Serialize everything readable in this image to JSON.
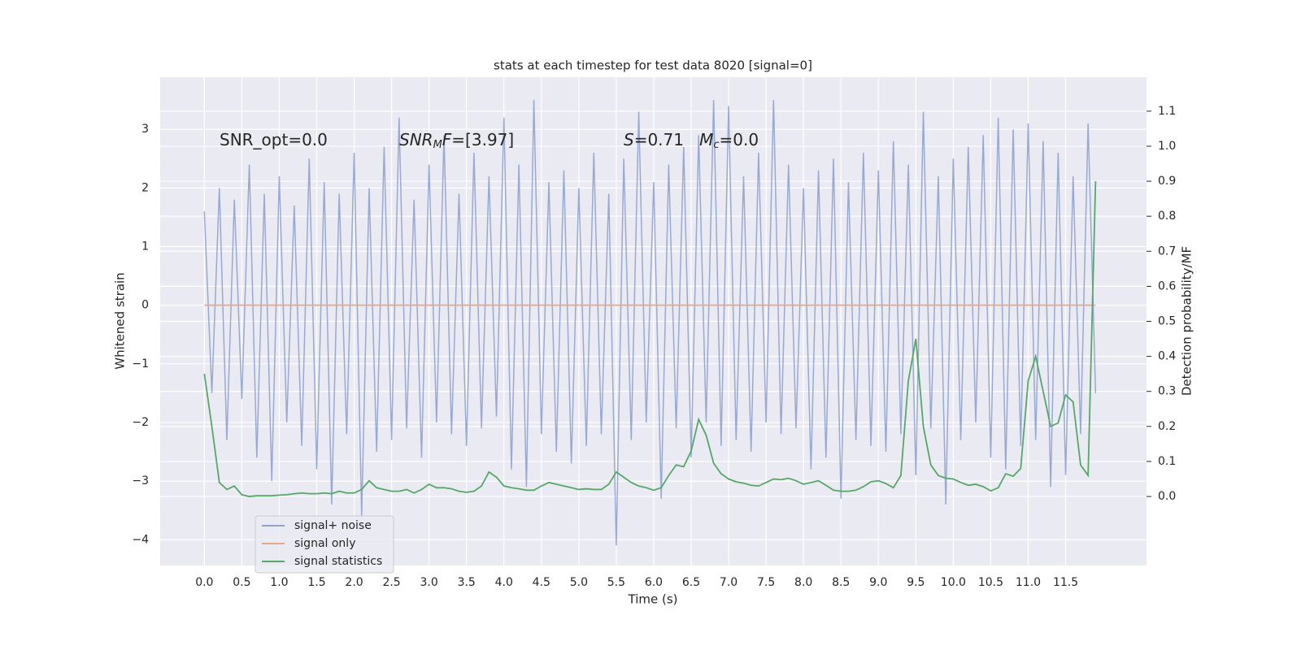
{
  "chart_data": {
    "type": "line",
    "title": "stats at each timestep for test data 8020 [signal=0]",
    "xlabel": "Time (s)",
    "ylabel": "Whitened strain",
    "y2label": "Detection probability/MF",
    "grid": true,
    "legend": "lower left",
    "xlim": [
      -0.59,
      12.58
    ],
    "ylim": [
      -4.44,
      3.89
    ],
    "y2lim": [
      -0.197,
      1.197
    ],
    "xticks": [
      {
        "value": 0,
        "label": "0.0"
      },
      0.5,
      {
        "value": 1,
        "label": "1.0"
      },
      1.5,
      {
        "value": 2,
        "label": "2.0"
      },
      2.5,
      {
        "value": 3,
        "label": "3.0"
      },
      3.5,
      {
        "value": 4,
        "label": "4.0"
      },
      4.5,
      {
        "value": 5,
        "label": "5.0"
      },
      5.5,
      {
        "value": 6,
        "label": "6.0"
      },
      6.5,
      {
        "value": 7,
        "label": "7.0"
      },
      7.5,
      {
        "value": 8,
        "label": "8.0"
      },
      8.5,
      {
        "value": 9,
        "label": "9.0"
      },
      9.5,
      {
        "value": 10,
        "label": "10.0"
      },
      10.5,
      {
        "value": 11,
        "label": "11.0"
      },
      11.5
    ],
    "yticks": [
      {
        "value": -4,
        "label": "−4"
      },
      {
        "value": -3,
        "label": "−3"
      },
      {
        "value": -2,
        "label": "−2"
      },
      {
        "value": -1,
        "label": "−1"
      },
      0,
      1,
      2,
      3
    ],
    "y2ticks": [
      {
        "value": 0,
        "label": "0.0"
      },
      0.1,
      0.2,
      0.3,
      0.4,
      0.5,
      0.6,
      0.7,
      0.8,
      0.9,
      {
        "value": 1,
        "label": "1.0"
      },
      1.1
    ],
    "annotations": [
      {
        "parts": [
          {
            "text": "SNR_opt=0.0"
          }
        ]
      },
      {
        "parts": [
          {
            "text": "SNR",
            "italic": true
          },
          {
            "text": "M",
            "italic": true,
            "sub": true
          },
          {
            "text": "F",
            "italic": true
          },
          {
            "text": "=[3.97]"
          }
        ]
      },
      {
        "parts": [
          {
            "text": "S",
            "italic": true
          },
          {
            "text": "=0.71   "
          },
          {
            "text": "M",
            "italic": true
          },
          {
            "text": "c",
            "italic": true,
            "sub": true
          },
          {
            "text": "=0.0"
          }
        ]
      }
    ],
    "x": [
      0,
      0.1,
      0.2,
      0.3,
      0.4,
      0.5,
      0.6,
      0.7,
      0.8,
      0.9,
      1,
      1.1,
      1.2,
      1.3,
      1.4,
      1.5,
      1.6,
      1.7,
      1.8,
      1.9,
      2,
      2.1,
      2.2,
      2.3,
      2.4,
      2.5,
      2.6,
      2.7,
      2.8,
      2.9,
      3,
      3.1,
      3.2,
      3.3,
      3.4,
      3.5,
      3.6,
      3.7,
      3.8,
      3.9,
      4,
      4.1,
      4.2,
      4.3,
      4.4,
      4.5,
      4.6,
      4.7,
      4.8,
      4.9,
      5,
      5.1,
      5.2,
      5.3,
      5.4,
      5.5,
      5.6,
      5.7,
      5.8,
      5.9,
      6,
      6.1,
      6.2,
      6.3,
      6.4,
      6.5,
      6.6,
      6.7,
      6.8,
      6.9,
      7,
      7.1,
      7.2,
      7.3,
      7.4,
      7.5,
      7.6,
      7.7,
      7.8,
      7.9,
      8,
      8.1,
      8.2,
      8.3,
      8.4,
      8.5,
      8.6,
      8.7,
      8.8,
      8.9,
      9,
      9.1,
      9.2,
      9.3,
      9.4,
      9.5,
      9.6,
      9.7,
      9.8,
      9.9,
      10,
      10.1,
      10.2,
      10.3,
      10.4,
      10.5,
      10.6,
      10.7,
      10.8,
      10.9,
      11,
      11.1,
      11.2,
      11.3,
      11.4,
      11.5,
      11.6,
      11.7,
      11.8,
      11.9
    ],
    "series": [
      {
        "name": "signal+ noise",
        "color": "#8fa3cf",
        "values": [
          1.6,
          -1.5,
          2.0,
          -2.3,
          1.8,
          -1.6,
          2.4,
          -2.6,
          1.9,
          -3.0,
          2.2,
          -2.0,
          1.7,
          -2.4,
          2.5,
          -2.8,
          2.1,
          -3.4,
          1.9,
          -2.2,
          2.6,
          -3.6,
          2.0,
          -2.5,
          2.7,
          -2.3,
          3.2,
          -2.1,
          1.8,
          -2.6,
          2.4,
          -2.0,
          2.9,
          -2.2,
          1.9,
          -2.4,
          2.6,
          -2.1,
          2.2,
          -1.9,
          3.2,
          -2.8,
          2.4,
          -3.1,
          3.5,
          -2.2,
          2.1,
          -2.5,
          2.3,
          -2.7,
          2.0,
          -2.4,
          2.6,
          -2.2,
          1.9,
          -4.1,
          2.5,
          -2.3,
          3.3,
          -2.0,
          2.1,
          -3.3,
          2.4,
          -2.1,
          2.7,
          -2.6,
          2.9,
          -2.0,
          3.5,
          -2.4,
          3.4,
          -2.3,
          2.2,
          -2.5,
          2.6,
          -2.0,
          3.5,
          -2.2,
          2.4,
          -2.1,
          2.0,
          -2.8,
          2.3,
          -2.6,
          2.5,
          -3.3,
          2.1,
          -2.3,
          2.6,
          -2.4,
          2.3,
          -2.5,
          2.8,
          -2.2,
          2.4,
          -2.9,
          3.3,
          -2.1,
          2.2,
          -3.4,
          2.5,
          -2.3,
          2.7,
          -2.0,
          2.9,
          -2.6,
          3.2,
          -2.8,
          3.0,
          -2.4,
          3.1,
          -2.3,
          2.8,
          -3.1,
          2.6,
          -2.9,
          2.2,
          -2.2,
          3.1,
          -1.5
        ]
      },
      {
        "name": "signal only",
        "color": "#e6a88a",
        "values": [
          0,
          0,
          0,
          0,
          0,
          0,
          0,
          0,
          0,
          0,
          0,
          0,
          0,
          0,
          0,
          0,
          0,
          0,
          0,
          0,
          0,
          0,
          0,
          0,
          0,
          0,
          0,
          0,
          0,
          0,
          0,
          0,
          0,
          0,
          0,
          0,
          0,
          0,
          0,
          0,
          0,
          0,
          0,
          0,
          0,
          0,
          0,
          0,
          0,
          0,
          0,
          0,
          0,
          0,
          0,
          0,
          0,
          0,
          0,
          0,
          0,
          0,
          0,
          0,
          0,
          0,
          0,
          0,
          0,
          0,
          0,
          0,
          0,
          0,
          0,
          0,
          0,
          0,
          0,
          0,
          0,
          0,
          0,
          0,
          0,
          0,
          0,
          0,
          0,
          0,
          0,
          0,
          0,
          0,
          0,
          0,
          0,
          0,
          0,
          0,
          0,
          0,
          0,
          0,
          0,
          0,
          0,
          0,
          0,
          0,
          0,
          0,
          0,
          0,
          0,
          0,
          0,
          0,
          0,
          0
        ]
      },
      {
        "name": "signal statistics",
        "color": "#55a868",
        "axis": "y2",
        "values": [
          0.35,
          0.2,
          0.04,
          0.02,
          0.03,
          0.005,
          0,
          0.002,
          0.002,
          0.002,
          0.004,
          0.005,
          0.008,
          0.01,
          0.008,
          0.008,
          0.01,
          0.008,
          0.015,
          0.01,
          0.01,
          0.02,
          0.045,
          0.025,
          0.02,
          0.015,
          0.015,
          0.02,
          0.01,
          0.02,
          0.035,
          0.025,
          0.025,
          0.022,
          0.015,
          0.012,
          0.015,
          0.03,
          0.07,
          0.055,
          0.03,
          0.025,
          0.022,
          0.018,
          0.018,
          0.03,
          0.04,
          0.035,
          0.03,
          0.025,
          0.02,
          0.022,
          0.02,
          0.02,
          0.035,
          0.07,
          0.055,
          0.04,
          0.03,
          0.025,
          0.018,
          0.025,
          0.06,
          0.09,
          0.085,
          0.13,
          0.22,
          0.175,
          0.095,
          0.065,
          0.05,
          0.042,
          0.038,
          0.032,
          0.03,
          0.04,
          0.05,
          0.048,
          0.052,
          0.045,
          0.035,
          0.04,
          0.045,
          0.032,
          0.018,
          0.015,
          0.015,
          0.018,
          0.028,
          0.042,
          0.045,
          0.037,
          0.025,
          0.06,
          0.33,
          0.45,
          0.2,
          0.09,
          0.06,
          0.052,
          0.05,
          0.04,
          0.032,
          0.035,
          0.028,
          0.016,
          0.025,
          0.065,
          0.058,
          0.08,
          0.33,
          0.4,
          0.3,
          0.2,
          0.21,
          0.29,
          0.27,
          0.09,
          0.06,
          0.9
        ]
      }
    ]
  }
}
